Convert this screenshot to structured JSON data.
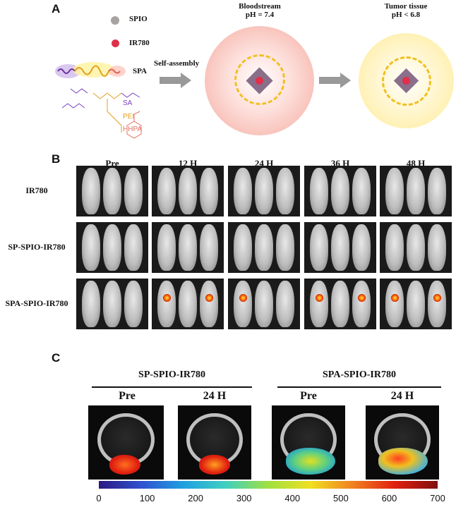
{
  "panel_a": {
    "label": "A",
    "legend": [
      {
        "label": "SPIO",
        "color": "#a8a2a2"
      },
      {
        "label": "IR780",
        "color": "#e0304a"
      },
      {
        "label": "SPA"
      }
    ],
    "structure_labels": [
      {
        "label": "SA",
        "color": "#7a3fc0"
      },
      {
        "label": "PEI",
        "color": "#e0a020"
      },
      {
        "label": "HHPA",
        "color": "#e07060"
      }
    ],
    "arrow_label": "Self-assembly",
    "bloodstream": {
      "title": "Bloodstream",
      "ph": "pH = 7.4"
    },
    "tumor": {
      "title": "Tumor tissue",
      "ph": "pH < 6.8"
    }
  },
  "panel_b": {
    "label": "B",
    "columns": [
      "Pre",
      "12 H",
      "24 H",
      "36 H",
      "48 H"
    ],
    "rows": [
      "IR780",
      "SP-SPIO-IR780",
      "SPA-SPIO-IR780"
    ]
  },
  "panel_c": {
    "label": "C",
    "groups": [
      {
        "title": "SP-SPIO-IR780",
        "columns": [
          "Pre",
          "24 H"
        ]
      },
      {
        "title": "SPA-SPIO-IR780",
        "columns": [
          "Pre",
          "24 H"
        ]
      }
    ],
    "colorbar": {
      "ticks": [
        "0",
        "100",
        "200",
        "300",
        "400",
        "500",
        "600",
        "700"
      ],
      "min": 0,
      "max": 700
    }
  }
}
